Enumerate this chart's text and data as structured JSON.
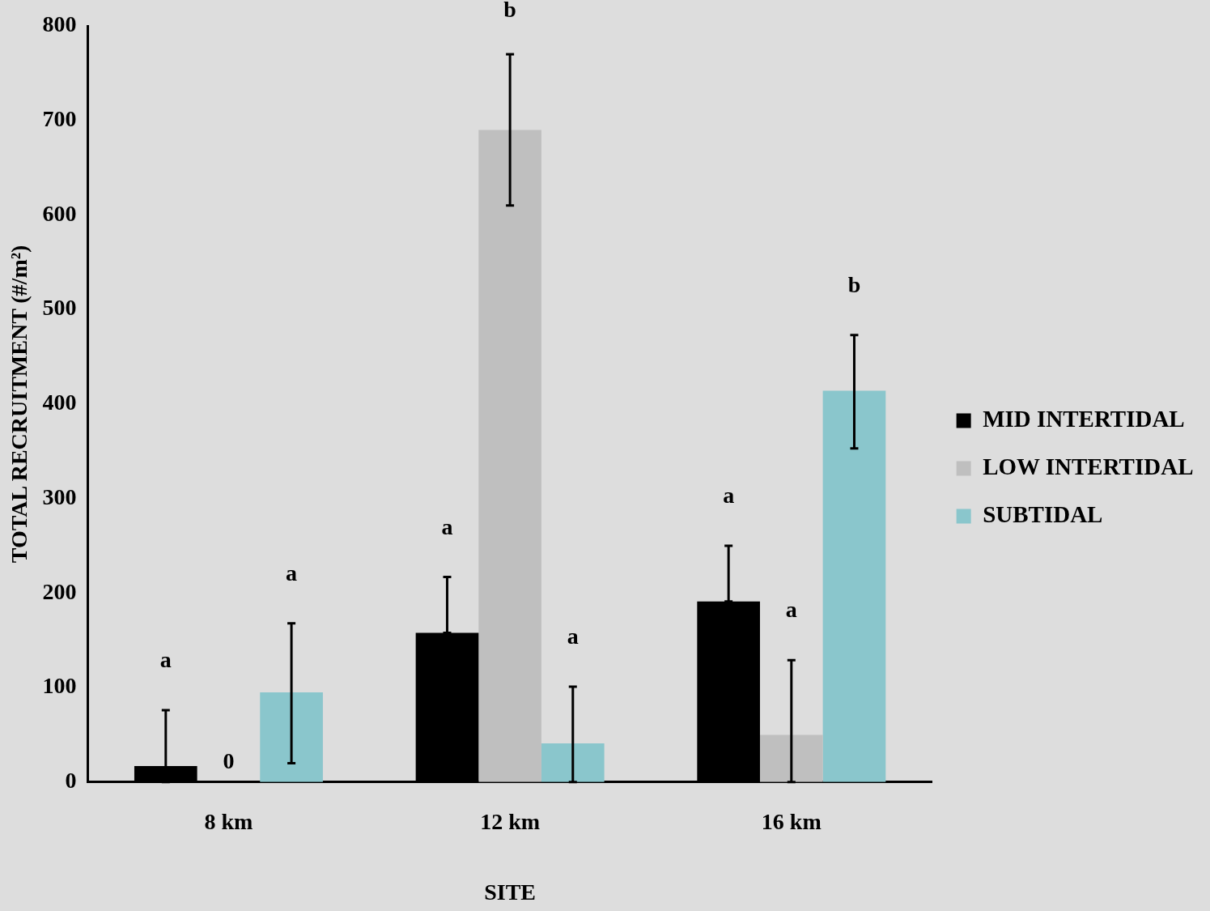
{
  "chart_data": {
    "type": "bar",
    "xlabel": "SITE",
    "ylabel": "TOTAL RECRUITMENT (#/m²)",
    "categories": [
      "8 km",
      "12 km",
      "16 km"
    ],
    "series": [
      {
        "name": "MID INTERTIDAL",
        "color": "#000000",
        "values": [
          17,
          158,
          191
        ],
        "errors": [
          [
            0,
            76
          ],
          [
            158,
            217
          ],
          [
            191,
            250
          ]
        ]
      },
      {
        "name": "LOW INTERTIDAL",
        "color": "#bfbfbf",
        "values": [
          0,
          690,
          50
        ],
        "errors": [
          null,
          [
            610,
            770
          ],
          [
            0,
            129
          ]
        ],
        "value_labels": [
          "0",
          null,
          null
        ]
      },
      {
        "name": "SUBTIDAL",
        "color": "#8ac6cc",
        "values": [
          95,
          41,
          414
        ],
        "errors": [
          [
            20,
            168
          ],
          [
            0,
            101
          ],
          [
            353,
            473
          ]
        ]
      }
    ],
    "annotations": [
      "a",
      "a",
      "a",
      "b",
      "a",
      "a",
      "a",
      "b"
    ],
    "ylim": [
      0,
      800
    ],
    "yticks": [
      0,
      100,
      200,
      300,
      400,
      500,
      600,
      700,
      800
    ],
    "grid": false,
    "legend": "right"
  }
}
